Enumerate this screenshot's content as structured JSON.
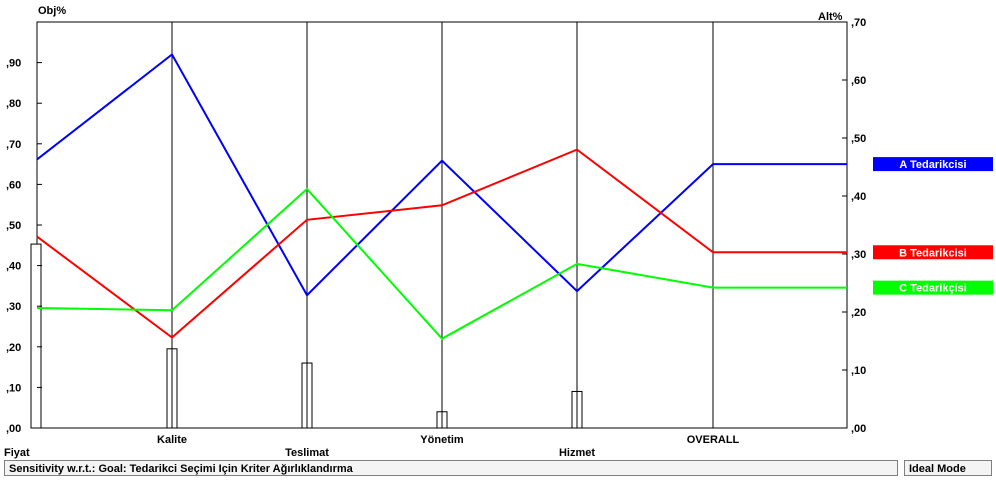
{
  "chart_data": {
    "type": "line",
    "left_axis_label": "Obj%",
    "right_axis_label": "Alt%",
    "left_ticks": [
      ",00",
      ",10",
      ",20",
      ",30",
      ",40",
      ",50",
      ",60",
      ",70",
      ",80",
      ",90"
    ],
    "right_ticks": [
      ",00",
      ",10",
      ",20",
      ",30",
      ",40",
      ",50",
      ",60",
      ",70"
    ],
    "left_ylim": [
      0,
      1.0
    ],
    "right_ylim": [
      0,
      0.7
    ],
    "criteria": [
      "Fiyat",
      "Kalite",
      "Teslimat",
      "Yönetim",
      "Hizmet",
      "OVERALL"
    ],
    "objective_weights": [
      0.453,
      0.195,
      0.16,
      0.04,
      0.09
    ],
    "series": [
      {
        "name": "A Tedarikcisi",
        "color": "#0000ff",
        "values": [
          0.463,
          0.644,
          0.229,
          0.461,
          0.236,
          0.455
        ]
      },
      {
        "name": "B Tedarikcisi",
        "color": "#ff0000",
        "values": [
          0.33,
          0.156,
          0.359,
          0.384,
          0.48,
          0.303
        ]
      },
      {
        "name": "C Tedarikçisi",
        "color": "#00ff00",
        "values": [
          0.207,
          0.203,
          0.412,
          0.154,
          0.283,
          0.242
        ]
      }
    ],
    "grid": false,
    "legend_placement": "right"
  },
  "status": {
    "text": "Sensitivity w.r.t.: Goal: Tedarikci Seçimi Için Kriter Ağırlıklandırma",
    "mode": "Ideal Mode"
  }
}
